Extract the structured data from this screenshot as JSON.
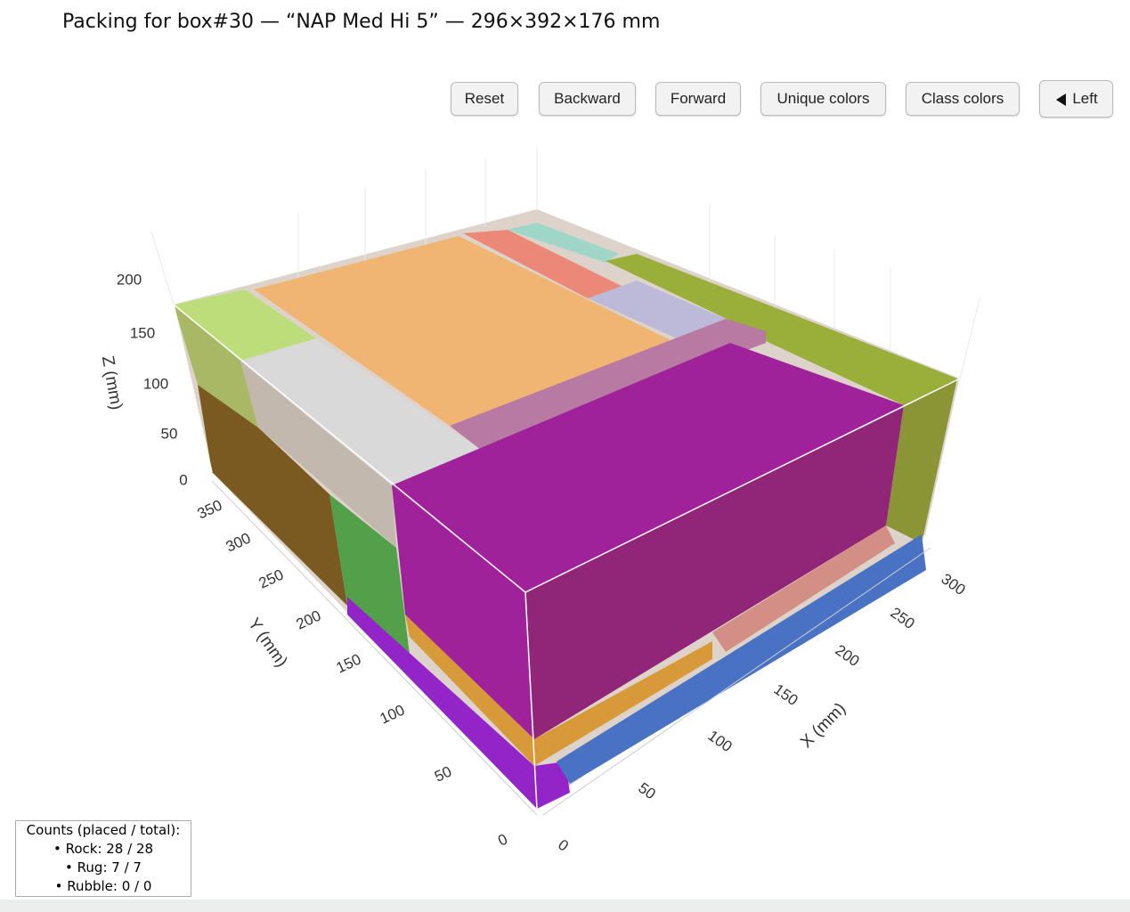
{
  "title": "Packing for box#30 — “NAP Med Hi 5” — 296×392×176 mm",
  "buttons": [
    "Reset",
    "Backward",
    "Forward",
    "Unique colors",
    "Class colors",
    "Left"
  ],
  "axes": {
    "z": {
      "label": "Z (mm)",
      "ticks": [
        0,
        50,
        100,
        150,
        200
      ]
    },
    "y": {
      "label": "Y (mm)",
      "ticks": [
        0,
        50,
        100,
        150,
        200,
        250,
        300,
        350
      ]
    },
    "x": {
      "label": "X (mm)",
      "ticks": [
        0,
        50,
        100,
        150,
        200,
        250,
        300
      ]
    }
  },
  "counts": {
    "title": "Counts (placed / total):",
    "items": [
      "• Rock: 28 / 28",
      "• Rug: 7 / 7",
      "• Rubble: 0 / 0"
    ]
  }
}
